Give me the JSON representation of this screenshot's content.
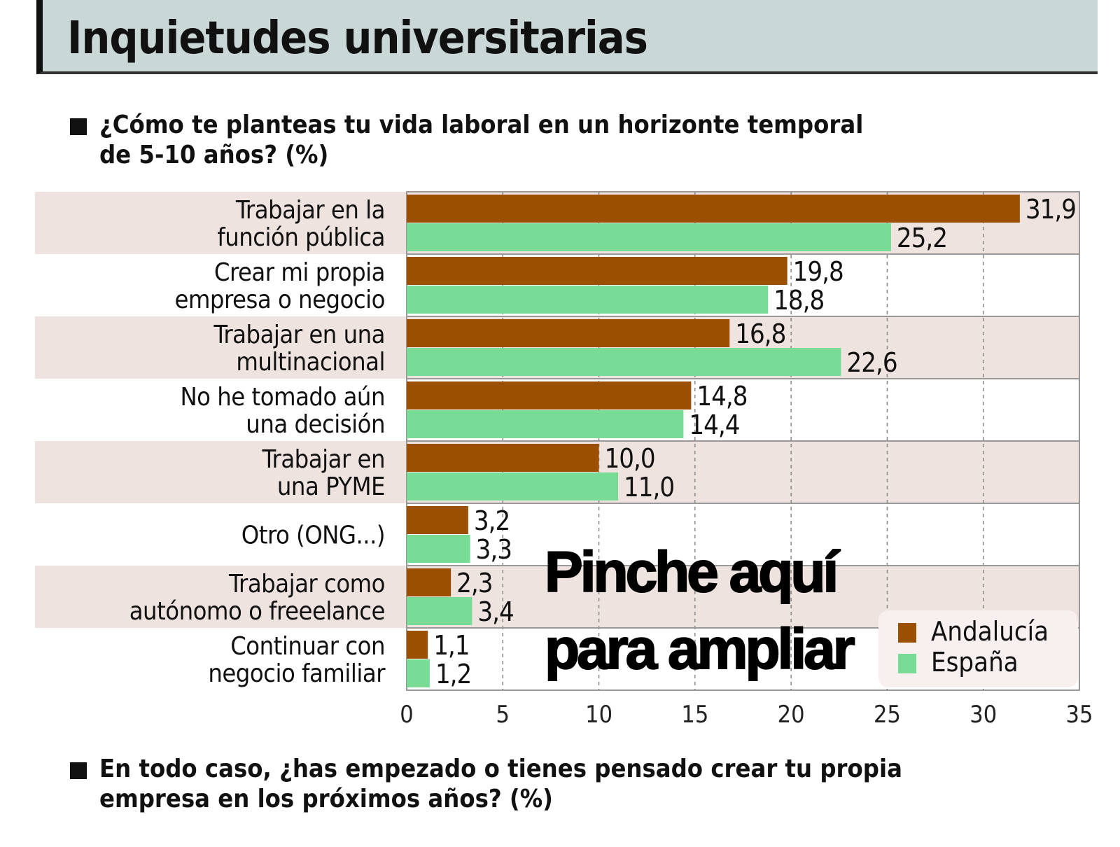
{
  "title": "Inquietudes universitarias",
  "question1": "¿Cómo te planteas tu vida laboral en un horizonte temporal de 5-10 años? (%)",
  "question1_lines": [
    "¿Cómo te planteas tu vida laboral en un horizonte temporal",
    "de 5-10 años? (%)"
  ],
  "question2_lines": [
    "En todo caso, ¿has empezado o tienes pensado crear tu propia",
    "empresa en los próximos años? (%)"
  ],
  "overlay_lines": [
    "Pinche aquí",
    "para ampliar"
  ],
  "colors": {
    "andalucia": "#9b4f00",
    "espana": "#78dc96",
    "band": "#efe3df",
    "title_bg": "#c9d8d7"
  },
  "chart_data": {
    "type": "bar",
    "orientation": "horizontal",
    "categories": [
      [
        "Trabajar en la",
        "función pública"
      ],
      [
        "Crear mi propia",
        "empresa o negocio"
      ],
      [
        "Trabajar en una",
        "multinacional"
      ],
      [
        "No he tomado aún",
        "una decisión"
      ],
      [
        "Trabajar en",
        "una PYME"
      ],
      [
        "Otro (ONG...)"
      ],
      [
        "Trabajar como",
        "autónomo o freeelance"
      ],
      [
        "Continuar con",
        "negocio familiar"
      ]
    ],
    "series": [
      {
        "name": "Andalucía",
        "values": [
          31.9,
          19.8,
          16.8,
          14.8,
          10.0,
          3.2,
          2.3,
          1.1
        ],
        "labels": [
          "31,9",
          "19,8",
          "16,8",
          "14,8",
          "10,0",
          "3,2",
          "2,3",
          "1,1"
        ]
      },
      {
        "name": "España",
        "values": [
          25.2,
          18.8,
          22.6,
          14.4,
          11.0,
          3.3,
          3.4,
          1.2
        ],
        "labels": [
          "25,2",
          "18,8",
          "22,6",
          "14,4",
          "11,0",
          "3,3",
          "3,4",
          "1,2"
        ]
      }
    ],
    "xlim": [
      0,
      35
    ],
    "xticks": [
      0,
      5,
      10,
      15,
      20,
      25,
      30,
      35
    ],
    "grid": true,
    "legend": "bottom-right"
  }
}
